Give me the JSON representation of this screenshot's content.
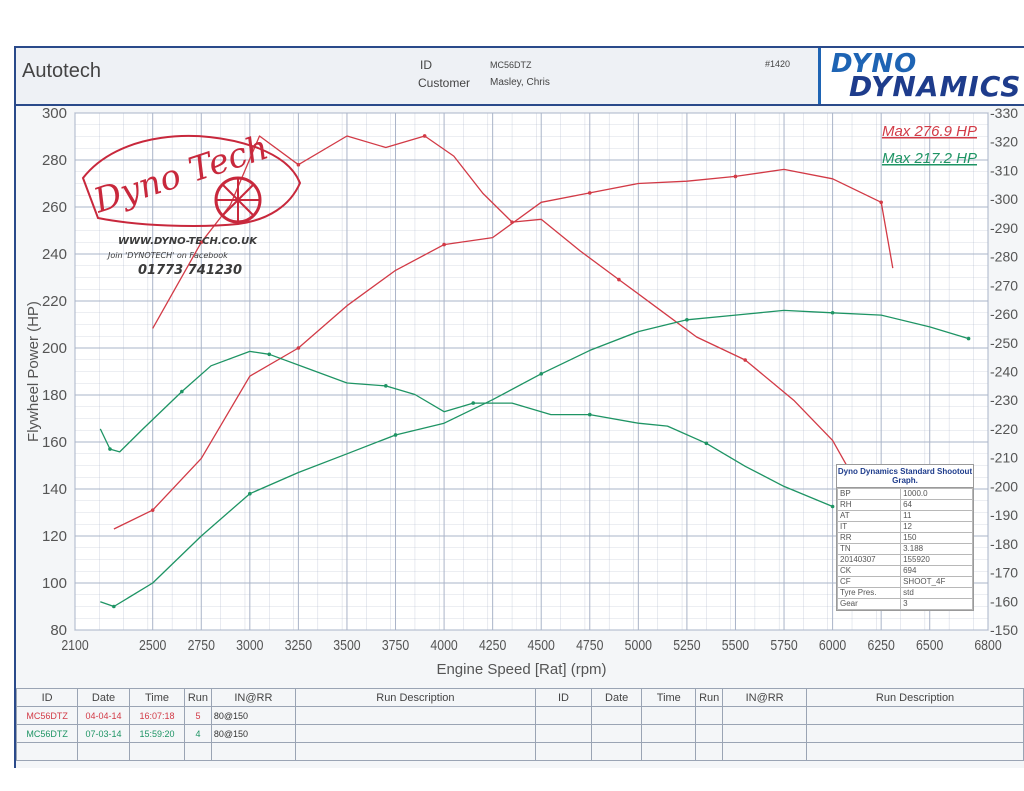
{
  "header": {
    "brand": "Autotech",
    "id_label": "ID",
    "id_value": "MC56DTZ",
    "customer_label": "Customer",
    "customer_value": "Masley, Chris",
    "job_number": "#1420",
    "logo_top": "DYNO",
    "logo_bottom": "DYNAMICS"
  },
  "stamp": {
    "logo_text": "Dyno Tech",
    "website": "WWW.DYNO-TECH.CO.UK",
    "facebook": "Join 'DYNOTECH' on Facebook",
    "phone": "01773 741230"
  },
  "colors": {
    "red_run": "#d23a46",
    "green_run": "#1e9464",
    "grid": "#aab4c8",
    "axis_text": "#555555",
    "brand_blue": "#1e64b4"
  },
  "chart_data": {
    "type": "line",
    "xlabel": "Engine Speed [Rat] (rpm)",
    "ylabel": "Flywheel Power (HP)",
    "y2label": "",
    "xlim": [
      2100,
      6800
    ],
    "ylim": [
      80,
      300
    ],
    "y2lim": [
      150,
      330
    ],
    "xticks": [
      2100,
      2500,
      2750,
      3000,
      3250,
      3500,
      3750,
      4000,
      4250,
      4500,
      4750,
      5000,
      5250,
      5500,
      5750,
      6000,
      6250,
      6500,
      6800
    ],
    "yticks": [
      80,
      100,
      120,
      140,
      160,
      180,
      200,
      220,
      240,
      260,
      280,
      300
    ],
    "y2ticks": [
      150,
      160,
      170,
      180,
      190,
      200,
      210,
      220,
      230,
      240,
      250,
      260,
      270,
      280,
      290,
      300,
      310,
      320,
      330
    ],
    "grid": true,
    "annotations": [
      {
        "text": "Max 276.9 HP",
        "color": "#d23a46"
      },
      {
        "text": "Max 217.2 HP",
        "color": "#1e9464"
      }
    ],
    "series": [
      {
        "id": "red_power",
        "axis": "left",
        "color": "#d23a46",
        "x": [
          2300,
          2500,
          2750,
          3000,
          3250,
          3500,
          3750,
          4000,
          4250,
          4500,
          4750,
          5000,
          5250,
          5500,
          5750,
          6000,
          6250,
          6310
        ],
        "y": [
          123,
          131,
          153,
          188,
          200,
          218,
          233,
          244,
          247,
          262,
          266,
          270,
          271,
          273,
          276,
          272,
          262,
          234
        ]
      },
      {
        "id": "red_torque",
        "axis": "right",
        "color": "#d23a46",
        "x": [
          2500,
          2750,
          2900,
          3050,
          3250,
          3500,
          3700,
          3900,
          4050,
          4200,
          4350,
          4500,
          4700,
          4900,
          5100,
          5300,
          5550,
          5800,
          6000,
          6150,
          6250
        ],
        "y": [
          255,
          285,
          298,
          322,
          312,
          322,
          318,
          322,
          315,
          302,
          292,
          293,
          282,
          272,
          262,
          252,
          244,
          230,
          216,
          198,
          180
        ]
      },
      {
        "id": "green_power",
        "axis": "left",
        "color": "#1e9464",
        "x": [
          2230,
          2300,
          2500,
          2750,
          3000,
          3250,
          3500,
          3750,
          4000,
          4250,
          4500,
          4750,
          5000,
          5250,
          5500,
          5750,
          6000,
          6250,
          6500,
          6700
        ],
        "y": [
          92,
          90,
          100,
          120,
          138,
          147,
          155,
          163,
          168,
          178,
          189,
          199,
          207,
          212,
          214,
          216,
          215,
          214,
          209,
          204
        ]
      },
      {
        "id": "green_torque",
        "axis": "right",
        "color": "#1e9464",
        "x": [
          2230,
          2280,
          2330,
          2450,
          2650,
          2800,
          3000,
          3100,
          3300,
          3500,
          3700,
          3850,
          4000,
          4150,
          4350,
          4550,
          4750,
          5000,
          5150,
          5350,
          5550,
          5750,
          6000
        ],
        "y": [
          220,
          213,
          212,
          220,
          233,
          242,
          247,
          246,
          241,
          236,
          235,
          232,
          226,
          229,
          229,
          225,
          225,
          222,
          221,
          215,
          207,
          200,
          193
        ]
      }
    ]
  },
  "legend": {
    "title": "Dyno Dynamics Standard Shootout Graph.",
    "rows": [
      [
        "BP",
        "1000.0"
      ],
      [
        "RH",
        "64"
      ],
      [
        "AT",
        "11"
      ],
      [
        "IT",
        "12"
      ],
      [
        "RR",
        "150"
      ],
      [
        "TN",
        "3.188"
      ],
      [
        "20140307",
        "155920"
      ],
      [
        "CK",
        "694"
      ],
      [
        "CF",
        "SHOOT_4F"
      ],
      [
        "Tyre Pres.",
        "std"
      ],
      [
        "Gear",
        "3"
      ]
    ]
  },
  "run_table": {
    "headers": [
      "ID",
      "Date",
      "Time",
      "Run",
      "IN@RR",
      "Run Description",
      "ID",
      "Date",
      "Time",
      "Run",
      "IN@RR",
      "Run Description"
    ],
    "rows": [
      {
        "id": "MC56DTZ",
        "date": "04-04-14",
        "time": "16:07:18",
        "run": "5",
        "inrr": "80@150",
        "color": "#d23a46"
      },
      {
        "id": "MC56DTZ",
        "date": "07-03-14",
        "time": "15:59:20",
        "run": "4",
        "inrr": "80@150",
        "color": "#1e9464"
      }
    ]
  }
}
